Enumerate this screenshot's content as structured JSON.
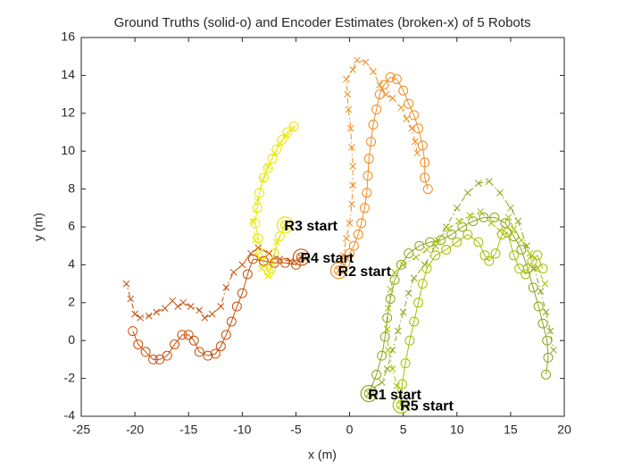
{
  "chart_data": {
    "type": "line",
    "title": "Ground Truths (solid-o) and Encoder Estimates (broken-x) of 5 Robots",
    "xlabel": "x (m)",
    "ylabel": "y (m)",
    "xlim": [
      -25,
      20
    ],
    "ylim": [
      -4,
      16
    ],
    "xticks": [
      -25,
      -20,
      -15,
      -10,
      -5,
      0,
      5,
      10,
      15,
      20
    ],
    "yticks": [
      -4,
      -2,
      0,
      2,
      4,
      6,
      8,
      10,
      12,
      14,
      16
    ],
    "grid": false,
    "series": [
      {
        "color": "#8aa619",
        "marker": "o",
        "linestyle": "solid",
        "start_label": "R1 start",
        "x": [
          1.8,
          2.5,
          3,
          3.3,
          3.5,
          3.8,
          4.2,
          4.8,
          5.5,
          6.5,
          7.5,
          8.5,
          9.5,
          10.5,
          11.5,
          12.5,
          13.5,
          14.5,
          15.3,
          16,
          16.6,
          17.1,
          17.6,
          18,
          18.4,
          18.5,
          18.3
        ],
        "values": [
          -2.8,
          -1.8,
          -0.8,
          0.2,
          1.2,
          2.2,
          3.2,
          4,
          4.6,
          5,
          5.2,
          5.3,
          5.6,
          6,
          6.3,
          6.5,
          6.5,
          6.2,
          5.5,
          4.8,
          3.8,
          2.8,
          1.8,
          0.9,
          0,
          -0.9,
          -1.8
        ]
      },
      {
        "color": "#8aa619",
        "marker": "x",
        "linestyle": "broken",
        "x": [
          1.8,
          2.3,
          3,
          3.5,
          4,
          4.5,
          5,
          5.5,
          6,
          7,
          8,
          9,
          10,
          11,
          12,
          13,
          14,
          15,
          15.7,
          16.5,
          17.2,
          17.8,
          18.3,
          18.7,
          19
        ],
        "values": [
          -2.8,
          -2.5,
          -2.2,
          -1.5,
          -0.5,
          0.5,
          1.5,
          2.5,
          3.3,
          4,
          5,
          6,
          7,
          7.8,
          8.3,
          8.4,
          7.8,
          7,
          6.3,
          5,
          3.8,
          2.6,
          1.5,
          0.5,
          -0.5
        ]
      },
      {
        "color": "#f08c1e",
        "marker": "o",
        "linestyle": "solid",
        "start_label": "R2 start",
        "x": [
          -1,
          -0.4,
          0,
          0.4,
          0.8,
          1.1,
          1.4,
          1.6,
          1.7,
          1.8,
          2,
          2.2,
          2.5,
          2.8,
          3.2,
          3.8,
          4.4,
          5,
          5.5,
          6,
          6.4,
          6.8,
          7,
          7,
          7.3
        ],
        "values": [
          3.7,
          4.1,
          4.6,
          5,
          5.6,
          6.2,
          7,
          7.8,
          8.7,
          9.6,
          10.5,
          11.4,
          12.2,
          13,
          13.5,
          13.9,
          13.8,
          13.2,
          12.5,
          11.9,
          11.2,
          10.3,
          9.4,
          8.6,
          8
        ]
      },
      {
        "color": "#f08c1e",
        "marker": "x",
        "linestyle": "broken",
        "x": [
          -1,
          -0.6,
          -0.3,
          0,
          0.2,
          0.3,
          0.3,
          0.2,
          0.1,
          -0.1,
          -0.2,
          -0.3,
          0.3,
          0.7,
          1.5,
          2.2,
          2.8,
          3.4,
          4,
          4.8,
          5.3,
          5.8,
          6.1,
          6.3
        ],
        "values": [
          3.7,
          4.5,
          5.4,
          6.2,
          7.2,
          8.2,
          9.2,
          10.2,
          11.2,
          12.2,
          13,
          13.8,
          14.3,
          14.8,
          14.7,
          14.2,
          13.5,
          13,
          12.8,
          12.3,
          11.7,
          11.2,
          10.5,
          9.9
        ]
      },
      {
        "color": "#e8e800",
        "marker": "o",
        "linestyle": "solid",
        "start_label": "R3 start",
        "x": [
          -6,
          -6.5,
          -7,
          -7.3,
          -7.5,
          -8,
          -8.2,
          -8.5,
          -8.8,
          -8.6,
          -8.4,
          -8,
          -7.6,
          -7.2,
          -6.8,
          -6.3,
          -5.8,
          -5.2
        ],
        "values": [
          6.1,
          5.5,
          4.6,
          3.8,
          3.6,
          4.1,
          4.6,
          5.4,
          6.2,
          7,
          7.8,
          8.6,
          9.1,
          9.6,
          10.1,
          10.6,
          11,
          11.3
        ]
      },
      {
        "color": "#e8e800",
        "marker": "x",
        "linestyle": "broken",
        "x": [
          -6,
          -6.8,
          -7.2,
          -7.6,
          -8.2,
          -8.6,
          -8.8,
          -9,
          -8.6,
          -8.1,
          -7.6,
          -7,
          -6.5,
          -5.9,
          -5.3
        ],
        "values": [
          6.1,
          5.2,
          4.2,
          3.4,
          3.8,
          4.5,
          5.3,
          6.3,
          7.4,
          8.5,
          9.2,
          9.9,
          10.4,
          10.8,
          11.2
        ]
      },
      {
        "color": "#c8500a",
        "marker": "o",
        "linestyle": "solid",
        "start_label": "R4 start",
        "x": [
          -4.5,
          -5,
          -6,
          -7,
          -8,
          -9,
          -9.5,
          -10,
          -10.5,
          -11,
          -11.5,
          -12,
          -12.5,
          -13.2,
          -14,
          -14.5,
          -15,
          -15.6,
          -16.3,
          -17,
          -17.7,
          -18.3,
          -19,
          -19.7,
          -20.2
        ],
        "values": [
          4.4,
          4,
          4.1,
          4.1,
          4.2,
          4.3,
          3.5,
          2.5,
          1.8,
          1,
          0.3,
          -0.3,
          -0.7,
          -0.8,
          -0.6,
          0,
          0.3,
          0.3,
          -0.2,
          -0.8,
          -1,
          -1,
          -0.6,
          -0.2,
          0.5
        ]
      },
      {
        "color": "#c8500a",
        "marker": "x",
        "linestyle": "broken",
        "x": [
          -4.5,
          -5.5,
          -6.5,
          -7.5,
          -8.5,
          -9.2,
          -10,
          -10.8,
          -11.5,
          -12,
          -12.8,
          -13.5,
          -14,
          -14.8,
          -15.5,
          -16,
          -16.5,
          -17.2,
          -18,
          -18.7,
          -19.5,
          -20,
          -20.4,
          -20.8
        ],
        "values": [
          4.4,
          4.2,
          4.3,
          4.6,
          4.9,
          4.6,
          4,
          3.6,
          2.8,
          1.8,
          1.4,
          1.2,
          1.6,
          1.8,
          2,
          1.8,
          2.1,
          1.7,
          1.5,
          1.3,
          1.2,
          1.4,
          2.2,
          3
        ]
      },
      {
        "color": "#a6c000",
        "marker": "o",
        "linestyle": "solid",
        "start_label": "R5 start",
        "x": [
          4.8,
          4.9,
          5.2,
          5.6,
          6,
          6.4,
          6.8,
          7.2,
          8,
          9,
          10,
          11,
          12,
          12.6,
          13,
          13.6,
          14.2,
          14.7,
          15.3,
          15.8,
          16.4,
          17,
          17.5,
          18
        ],
        "values": [
          -3.4,
          -2.3,
          -1.2,
          0,
          1,
          2,
          3,
          3.8,
          4.5,
          4.8,
          5.2,
          5.6,
          5.2,
          4.5,
          4.2,
          4.6,
          5.6,
          5.7,
          4.5,
          3.8,
          3.5,
          4.2,
          4.5,
          3.8
        ]
      },
      {
        "color": "#a6c000",
        "marker": "x",
        "linestyle": "broken",
        "x": [
          4.8,
          4.4,
          4,
          3.6,
          3.5,
          3.6,
          3.8,
          4.2,
          5,
          6.2,
          7.2,
          8.2,
          9.2,
          10.2,
          11.2,
          12.2,
          13.2,
          14,
          14.8,
          15.3,
          16,
          16.8,
          17.5,
          18.2
        ],
        "values": [
          -3.4,
          -2.4,
          -1.5,
          -0.5,
          0.6,
          1.7,
          2.7,
          3.6,
          4,
          4.4,
          4.8,
          5.3,
          5.9,
          6.3,
          6.6,
          6.8,
          6.2,
          5.8,
          6.5,
          5.9,
          5.3,
          4.6,
          3.8,
          3
        ]
      }
    ]
  }
}
